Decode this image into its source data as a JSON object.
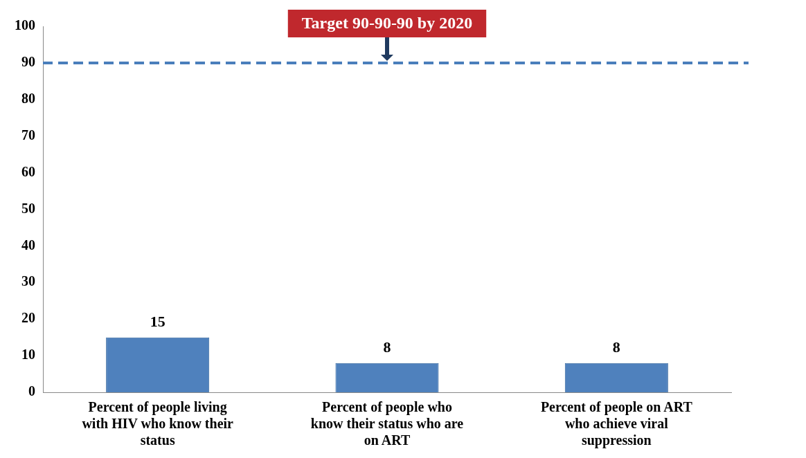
{
  "chart_data": {
    "type": "bar",
    "categories": [
      "Percent of people living with HIV who know their status",
      "Percent of people who know their status who are on ART",
      "Percent of people on ART who achieve viral suppression"
    ],
    "values": [
      15,
      8,
      8
    ],
    "color": "#4f81bd",
    "ylim": [
      0,
      100
    ],
    "yticks": [
      0,
      10,
      20,
      30,
      40,
      50,
      60,
      70,
      80,
      90,
      100
    ],
    "grid": false,
    "legend": false,
    "data_labels": true,
    "ref_lines": [
      {
        "axis": "y",
        "value": 90,
        "label": "Target 90-90-90 by 2020",
        "color": "#4a7ebb",
        "line_style": "dashed"
      }
    ]
  }
}
